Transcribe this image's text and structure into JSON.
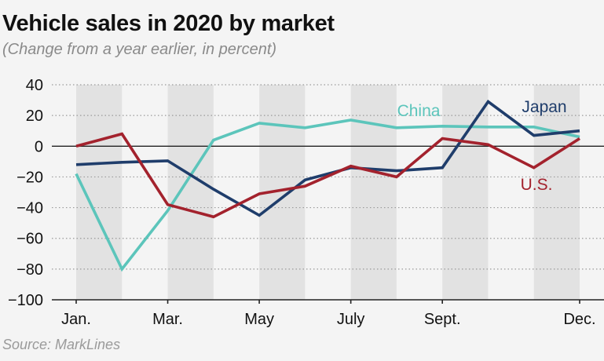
{
  "title": "Vehicle sales in 2020 by market",
  "subtitle": "(Change from a year earlier, in percent)",
  "source": "Source: MarkLines",
  "chart_data": {
    "type": "line",
    "title": "Vehicle sales in 2020 by market",
    "subtitle": "(Change from a year earlier, in percent)",
    "x": [
      "Jan",
      "Feb",
      "Mar",
      "Apr",
      "May",
      "Jun",
      "Jul",
      "Aug",
      "Sep",
      "Oct",
      "Nov",
      "Dec"
    ],
    "xtick_labels": [
      "Jan.",
      "",
      "Mar.",
      "",
      "May",
      "",
      "July",
      "",
      "Sept.",
      "",
      "",
      "Dec."
    ],
    "yticks": [
      40,
      20,
      0,
      -20,
      -40,
      -60,
      -80,
      -100
    ],
    "ytick_labels": [
      "40",
      "20",
      "0",
      "−20",
      "−40",
      "−60",
      "−80",
      "−100"
    ],
    "ylim": [
      -100,
      40
    ],
    "grid": "horizontal dotted",
    "shaded_months": [
      "Jan",
      "Mar",
      "May",
      "Jul",
      "Sep",
      "Nov"
    ],
    "series": [
      {
        "name": "China",
        "color": "#5cc5bb",
        "values": [
          -18,
          -80,
          -42,
          4,
          15,
          12,
          17,
          12,
          13,
          12.5,
          12.5,
          6
        ]
      },
      {
        "name": "Japan",
        "color": "#1f3d6b",
        "values": [
          -12,
          -10.5,
          -9.5,
          -28,
          -45,
          -22,
          -14,
          -16,
          -14,
          29,
          7,
          10
        ]
      },
      {
        "name": "U.S.",
        "color": "#a3222d",
        "values": [
          0,
          8,
          -38,
          -46,
          -31,
          -26,
          -13,
          -20,
          5,
          1,
          -14,
          5
        ]
      }
    ]
  }
}
